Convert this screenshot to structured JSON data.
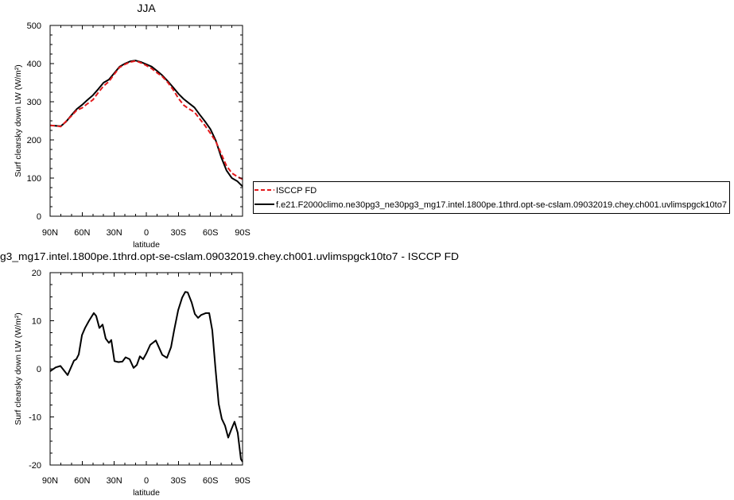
{
  "chart_data": [
    {
      "type": "line",
      "title": "JJA",
      "xlabel": "latitude",
      "ylabel": "Surf clearsky down LW (W/m²)",
      "xlim": [
        90,
        -90
      ],
      "ylim": [
        0,
        500
      ],
      "x_ticks": [
        90,
        60,
        30,
        0,
        -30,
        -60,
        -90
      ],
      "x_tick_labels": [
        "90N",
        "60N",
        "30N",
        "0",
        "30S",
        "60S",
        "90S"
      ],
      "y_ticks": [
        0,
        100,
        200,
        300,
        400,
        500
      ],
      "y_tick_labels": [
        "0",
        "100",
        "200",
        "300",
        "400",
        "500"
      ],
      "x": [
        90,
        85,
        80,
        75,
        70,
        65,
        60,
        55,
        50,
        45,
        40,
        35,
        30,
        25,
        20,
        15,
        10,
        5,
        0,
        -5,
        -10,
        -15,
        -20,
        -25,
        -30,
        -35,
        -40,
        -45,
        -50,
        -55,
        -60,
        -65,
        -70,
        -75,
        -80,
        -85,
        -90
      ],
      "series": [
        {
          "name": "ISCCP FD",
          "color": "#e31a1c",
          "dashed": true,
          "values": [
            238,
            237,
            235,
            249,
            263,
            278,
            284,
            295,
            305,
            324,
            341,
            353,
            372,
            390,
            398,
            404,
            407,
            402,
            395,
            387,
            376,
            366,
            351,
            332,
            309,
            291,
            281,
            273,
            255,
            237,
            217,
            196,
            164,
            132,
            113,
            104,
            97
          ]
        },
        {
          "name": "f.e21.F2000climo.ne30pg3_ne30pg3_mg17.intel.1800pe.1thrd.opt-se-cslam.09032019.chey.ch001.uvlimspgck10to7",
          "color": "#000000",
          "dashed": false,
          "values": [
            238,
            237,
            236,
            248,
            265,
            281,
            292,
            305,
            317,
            333,
            350,
            358,
            375,
            392,
            400,
            406,
            408,
            404,
            398,
            392,
            381,
            369,
            354,
            338,
            321,
            307,
            296,
            285,
            266,
            248,
            228,
            198,
            155,
            120,
            100,
            92,
            78
          ]
        }
      ]
    },
    {
      "type": "line",
      "title": "g3_mg17.intel.1800pe.1thrd.opt-se-cslam.09032019.chey.ch001.uvlimspgck10to7 - ISCCP FD",
      "xlabel": "latitude",
      "ylabel": "Surf clearsky down LW (W/m²)",
      "xlim": [
        90,
        -90
      ],
      "ylim": [
        -20,
        20
      ],
      "x_ticks": [
        90,
        60,
        30,
        0,
        -30,
        -60,
        -90
      ],
      "x_tick_labels": [
        "90N",
        "60N",
        "30N",
        "0",
        "30S",
        "60S",
        "90S"
      ],
      "y_ticks": [
        -20,
        -10,
        0,
        10,
        20
      ],
      "y_tick_labels": [
        "-20",
        "-10",
        "0",
        "10",
        "20"
      ],
      "series": [
        {
          "color": "#000000",
          "dashed": false,
          "x": [
            90,
            84.8,
            80.3,
            73.6,
            67.7,
            65.5,
            63.2,
            60.2,
            57.3,
            53.6,
            49.1,
            46.9,
            43.9,
            40.9,
            38.0,
            35.0,
            32.8,
            29.8,
            26.1,
            22.4,
            19.4,
            15.6,
            11.9,
            8.9,
            6.0,
            3.0,
            0.0,
            -3.7,
            -8.9,
            -11.1,
            -14.9,
            -19.3,
            -23.1,
            -26.0,
            -29.8,
            -33.5,
            -36.4,
            -38.7,
            -42.4,
            -45.4,
            -48.4,
            -51.3,
            -55.8,
            -58.8,
            -61.7,
            -64.7,
            -67.7,
            -70.6,
            -73.6,
            -76.6,
            -79.5,
            -82.5,
            -85.5,
            -88.5,
            -90
          ],
          "values": [
            -0.5,
            0.3,
            0.6,
            -1.3,
            1.7,
            2.0,
            3.0,
            7.0,
            8.5,
            10.0,
            11.6,
            11.0,
            8.5,
            9.2,
            6.3,
            5.4,
            6.0,
            1.6,
            1.4,
            1.5,
            2.4,
            2.0,
            0.2,
            0.8,
            2.6,
            2.0,
            3.2,
            5.0,
            5.9,
            4.8,
            2.9,
            2.3,
            4.5,
            8.0,
            12.2,
            14.8,
            16.0,
            15.9,
            13.8,
            11.4,
            10.6,
            11.2,
            11.6,
            11.6,
            8.0,
            0.0,
            -7.3,
            -10.4,
            -11.8,
            -14.3,
            -12.6,
            -11.0,
            -13.3,
            -18.8,
            -19.3
          ]
        }
      ]
    }
  ]
}
